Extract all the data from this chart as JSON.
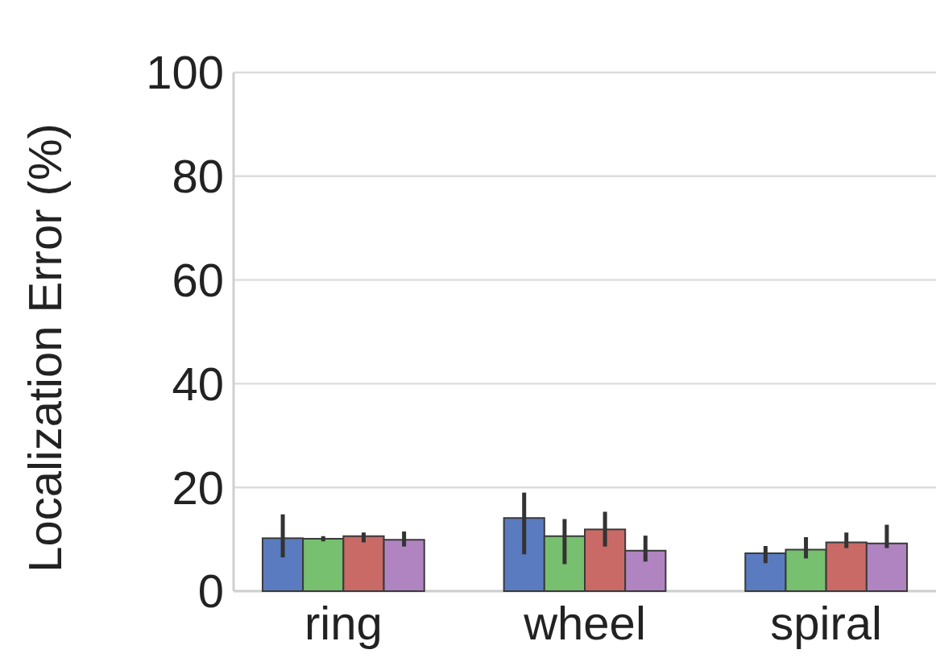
{
  "chart_data": {
    "type": "bar",
    "ylabel": "Localization Error (%)",
    "categories": [
      "ring",
      "wheel",
      "spiral"
    ],
    "series": [
      {
        "color": "#5a7bc0",
        "values": [
          10.2,
          14.1,
          7.3
        ],
        "errors": [
          [
            6.5,
            14.8
          ],
          [
            7.1,
            19.0
          ],
          [
            5.4,
            8.7
          ]
        ]
      },
      {
        "color": "#77c06f",
        "values": [
          10.1,
          10.6,
          8.0
        ],
        "errors": [
          [
            9.6,
            10.6
          ],
          [
            5.2,
            13.9
          ],
          [
            6.3,
            10.4
          ]
        ]
      },
      {
        "color": "#c96a66",
        "values": [
          10.6,
          11.9,
          9.4
        ],
        "errors": [
          [
            9.4,
            11.3
          ],
          [
            8.6,
            15.3
          ],
          [
            8.3,
            11.3
          ]
        ]
      },
      {
        "color": "#b084c0",
        "values": [
          9.9,
          7.8,
          9.2
        ],
        "errors": [
          [
            8.6,
            11.5
          ],
          [
            5.7,
            10.7
          ],
          [
            8.3,
            12.8
          ]
        ]
      }
    ],
    "ylim": [
      0,
      100
    ],
    "yticks": [
      0,
      20,
      40,
      60,
      80,
      100
    ],
    "grid": "y"
  }
}
